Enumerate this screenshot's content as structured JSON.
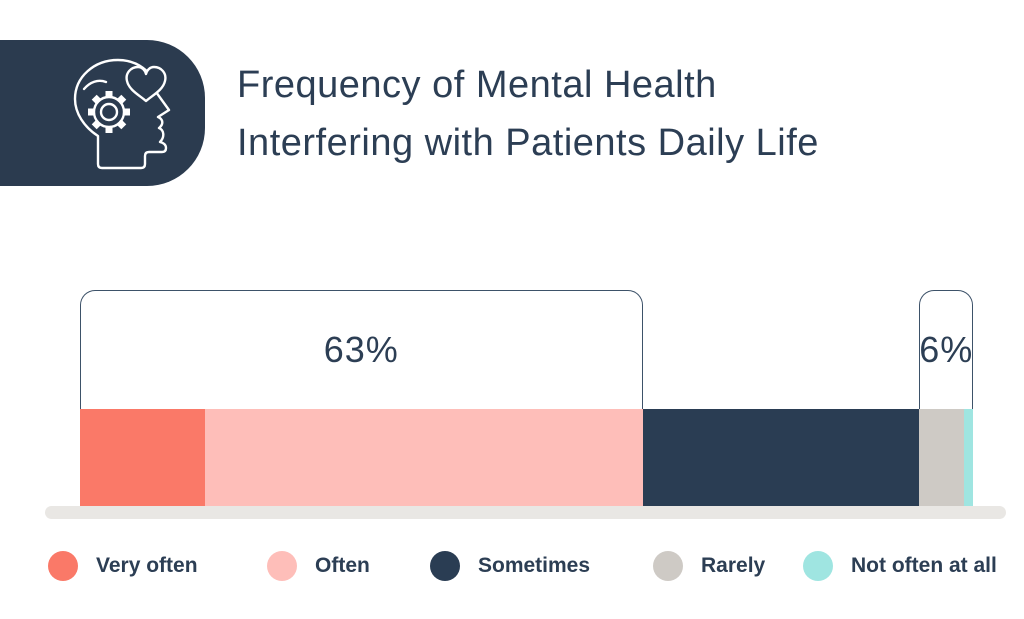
{
  "header": {
    "title_line1": "Frequency of Mental Health",
    "title_line2": "Interfering with Patients Daily Life",
    "icon": "head-with-gear-and-heart-icon",
    "icon_box_color": "#2B3B4F",
    "icon_stroke_color": "#FFFFFF"
  },
  "chart_data": {
    "type": "bar",
    "subtype": "horizontal-stacked-100pct",
    "title": "Frequency of Mental Health Interfering with Patients Daily Life",
    "categories": [
      "Very often",
      "Often",
      "Sometimes",
      "Rarely",
      "Not often at all"
    ],
    "values": [
      14,
      49,
      31,
      5,
      1
    ],
    "values_note": "percent of total bar width; only bracket sums are labeled on screen",
    "colors": [
      "#FA7968",
      "#FEBEB9",
      "#2A3D53",
      "#CECAC5",
      "#9FE5E1"
    ],
    "annotations": [
      {
        "label": "63%",
        "from": 0,
        "to": 1
      },
      {
        "label": "6%",
        "from": 3,
        "to": 4
      }
    ],
    "legend_position": "bottom",
    "axes": "none",
    "baseline_color": "#E9E7E4",
    "bracket_color": "#3D5269"
  },
  "legend": {
    "items": [
      {
        "label": "Very often",
        "swatch": "circle"
      },
      {
        "label": "Often",
        "swatch": "circle"
      },
      {
        "label": "Sometimes",
        "swatch": "circle"
      },
      {
        "label": "Rarely",
        "swatch": "circle"
      },
      {
        "label": "Not often at all",
        "swatch": "circle"
      }
    ]
  },
  "theme": {
    "text_color": "#2C3E54",
    "background": "#FFFFFF"
  }
}
